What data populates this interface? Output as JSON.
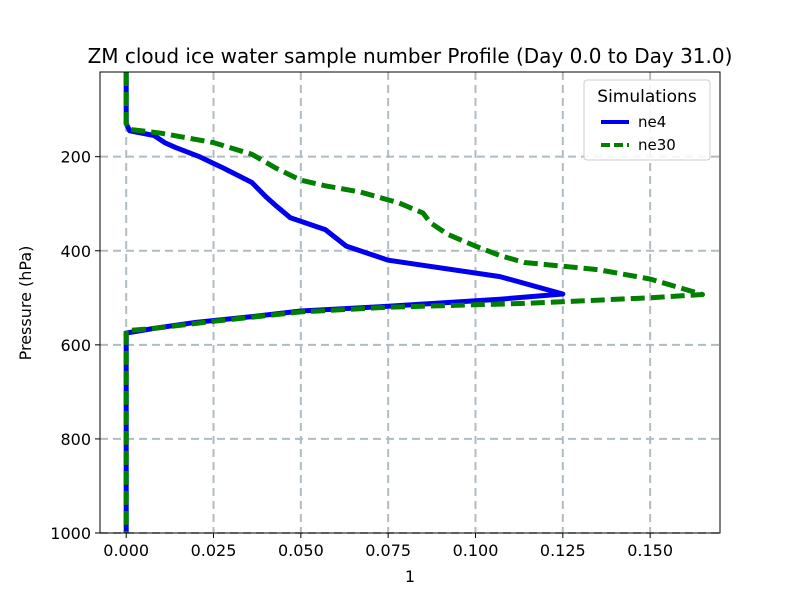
{
  "chart_data": {
    "type": "line",
    "title": "ZM cloud ice water sample number Profile (Day 0.0 to Day 31.0)",
    "xlabel": "1",
    "ylabel": "Pressure (hPa)",
    "xlim": [
      -0.0075,
      0.17
    ],
    "ylim": [
      1000,
      20
    ],
    "y_inverted": true,
    "xticks": [
      0.0,
      0.025,
      0.05,
      0.075,
      0.1,
      0.125,
      0.15
    ],
    "xtick_labels": [
      "0.000",
      "0.025",
      "0.050",
      "0.075",
      "0.100",
      "0.125",
      "0.150"
    ],
    "yticks": [
      200,
      400,
      600,
      800,
      1000
    ],
    "ytick_labels": [
      "200",
      "400",
      "600",
      "800",
      "1000"
    ],
    "grid": true,
    "legend": {
      "title": "Simulations",
      "position": "top-right"
    },
    "series": [
      {
        "name": "ne4",
        "color": "#0000ee",
        "dash": "solid",
        "points": [
          [
            0.0,
            20
          ],
          [
            0.0,
            130
          ],
          [
            0.001,
            145
          ],
          [
            0.008,
            155
          ],
          [
            0.011,
            170
          ],
          [
            0.014,
            180
          ],
          [
            0.021,
            200
          ],
          [
            0.028,
            225
          ],
          [
            0.036,
            255
          ],
          [
            0.04,
            285
          ],
          [
            0.043,
            305
          ],
          [
            0.047,
            330
          ],
          [
            0.057,
            355
          ],
          [
            0.063,
            390
          ],
          [
            0.075,
            420
          ],
          [
            0.107,
            455
          ],
          [
            0.125,
            492
          ],
          [
            0.107,
            503
          ],
          [
            0.075,
            518
          ],
          [
            0.05,
            528
          ],
          [
            0.036,
            540
          ],
          [
            0.02,
            552
          ],
          [
            0.008,
            565
          ],
          [
            0.0,
            575
          ],
          [
            0.0,
            1000
          ]
        ]
      },
      {
        "name": "ne30",
        "color": "#007f00",
        "dash": "dashed",
        "points": [
          [
            0.0,
            20
          ],
          [
            0.0,
            130
          ],
          [
            0.001,
            142
          ],
          [
            0.01,
            150
          ],
          [
            0.025,
            170
          ],
          [
            0.036,
            195
          ],
          [
            0.043,
            225
          ],
          [
            0.05,
            250
          ],
          [
            0.057,
            262
          ],
          [
            0.067,
            275
          ],
          [
            0.078,
            298
          ],
          [
            0.085,
            320
          ],
          [
            0.087,
            340
          ],
          [
            0.092,
            365
          ],
          [
            0.1,
            390
          ],
          [
            0.107,
            410
          ],
          [
            0.114,
            425
          ],
          [
            0.135,
            440
          ],
          [
            0.15,
            460
          ],
          [
            0.165,
            493
          ],
          [
            0.15,
            500
          ],
          [
            0.114,
            512
          ],
          [
            0.075,
            520
          ],
          [
            0.05,
            530
          ],
          [
            0.025,
            550
          ],
          [
            0.008,
            565
          ],
          [
            0.0,
            570
          ],
          [
            0.0,
            1000
          ]
        ]
      }
    ]
  }
}
